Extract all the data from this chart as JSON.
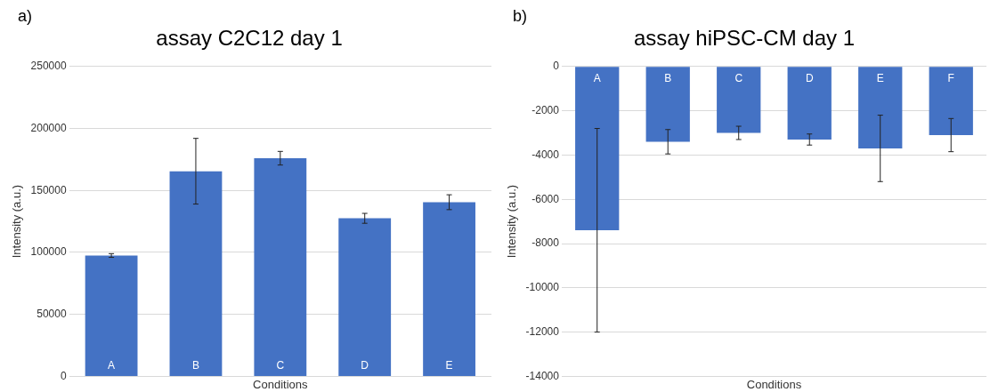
{
  "chart_data": [
    {
      "type": "bar",
      "title": "assay C2C12 day 1",
      "xlabel": "Conditions",
      "ylabel": "Intensity (a.u.)",
      "annotations": [
        "a)"
      ],
      "categories": [
        "A",
        "B",
        "C",
        "D",
        "E"
      ],
      "values": [
        97500,
        165500,
        176000,
        127500,
        140500
      ],
      "color": "#4472c4",
      "errors": [
        1500,
        26500,
        5500,
        4000,
        6000
      ],
      "ylim": [
        0,
        250000
      ],
      "yticks": [
        0,
        50000,
        100000,
        150000,
        200000,
        250000
      ],
      "grid": "y"
    },
    {
      "type": "bar",
      "title": "assay hiPSC-CM day 1",
      "xlabel": "Conditions",
      "ylabel": "Intensity (a.u.)",
      "annotations": [
        "b)"
      ],
      "categories": [
        "A",
        "B",
        "C",
        "D",
        "E",
        "F"
      ],
      "values": [
        -7400,
        -3400,
        -3000,
        -3300,
        -3700,
        -3100
      ],
      "color": "#4472c4",
      "errors": [
        4600,
        550,
        300,
        250,
        1500,
        750
      ],
      "ylim": [
        -14000,
        0
      ],
      "yticks": [
        -14000,
        -12000,
        -10000,
        -8000,
        -6000,
        -4000,
        -2000,
        0
      ],
      "grid": "y"
    }
  ]
}
